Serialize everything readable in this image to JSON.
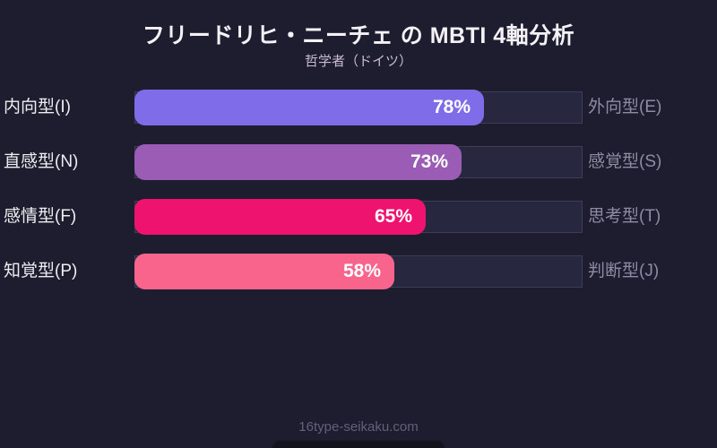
{
  "page": {
    "background": "#1d1d2f",
    "footer": "16type-seikaku.com"
  },
  "chart_data": {
    "type": "bar",
    "orientation": "horizontal",
    "title": "フリードリヒ・ニーチェ の MBTI 4軸分析",
    "subtitle": "哲学者（ドイツ）",
    "xlim": [
      0,
      100
    ],
    "grid": false,
    "legend": false,
    "track_color": "#272740",
    "track_border_color": "#3d3d59",
    "rows": [
      {
        "left_label": "内向型(I)",
        "right_label": "外向型(E)",
        "value": 78,
        "pct_label": "78%",
        "color": "#7e6ce8"
      },
      {
        "left_label": "直感型(N)",
        "right_label": "感覚型(S)",
        "value": 73,
        "pct_label": "73%",
        "color": "#9a5cb4"
      },
      {
        "left_label": "感情型(F)",
        "right_label": "思考型(T)",
        "value": 65,
        "pct_label": "65%",
        "color": "#ef1370"
      },
      {
        "left_label": "知覚型(P)",
        "right_label": "判断型(J)",
        "value": 58,
        "pct_label": "58%",
        "color": "#f9648c"
      }
    ]
  }
}
